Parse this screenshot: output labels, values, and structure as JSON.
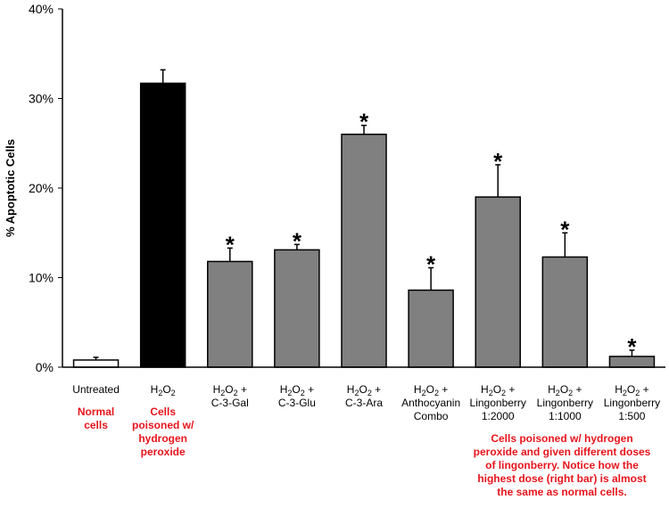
{
  "chart_data": {
    "type": "bar",
    "ylabel": "% Apoptotic Cells",
    "ylim": [
      0,
      40
    ],
    "yticks": [
      "0%",
      "10%",
      "20%",
      "30%",
      "40%"
    ],
    "grid": false,
    "categories": [
      [
        "Untreated"
      ],
      [
        "H|2|O|2"
      ],
      [
        "H|2|O|2| +",
        "C-3-Gal"
      ],
      [
        "H|2|O|2| +",
        "C-3-Glu"
      ],
      [
        "H|2|O|2| +",
        "C-3-Ara"
      ],
      [
        "H|2|O|2| +",
        "Anthocyanin",
        "Combo"
      ],
      [
        "H|2|O|2| +",
        "Lingonberry",
        "1:2000"
      ],
      [
        "H|2|O|2| +",
        "Lingonberry",
        "1:1000"
      ],
      [
        "H|2|O|2| +",
        "Lingonberry",
        "1:500"
      ]
    ],
    "values": [
      0.8,
      31.7,
      11.8,
      13.1,
      26.0,
      8.6,
      19.0,
      12.3,
      1.2
    ],
    "error_upper": [
      1.1,
      33.2,
      13.3,
      13.7,
      27.0,
      11.1,
      22.6,
      15.0,
      1.9
    ],
    "bar_colors": [
      "#ffffff",
      "#000000",
      "#808080",
      "#808080",
      "#808080",
      "#808080",
      "#808080",
      "#808080",
      "#808080"
    ],
    "significance": [
      "",
      "",
      "*",
      "*",
      "*",
      "*",
      "*",
      "*",
      "*"
    ],
    "annotations": [
      {
        "category": 0,
        "lines": [
          "Normal",
          "cells"
        ]
      },
      {
        "category": 1,
        "lines": [
          "Cells",
          "poisoned w/",
          "hydrogen",
          "peroxide"
        ]
      },
      {
        "category": 7,
        "lines": [
          "Cells poisoned w/ hydrogen",
          "peroxide and given different doses",
          "of lingonberry. Notice how the",
          "highest dose (right bar) is almost",
          "the same as normal cells."
        ]
      }
    ],
    "annotation_color": "#e8141c"
  }
}
